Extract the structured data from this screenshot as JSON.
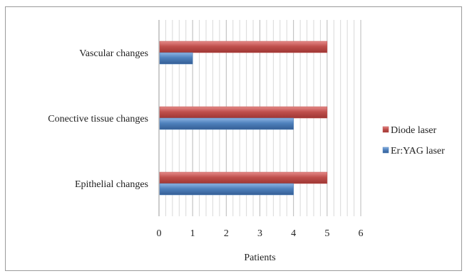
{
  "chart_data": {
    "type": "bar",
    "orientation": "horizontal",
    "categories": [
      "Vascular changes",
      "Conective tissue changes",
      "Epithelial changes"
    ],
    "series": [
      {
        "name": "Diode laser",
        "values": [
          5,
          5,
          5
        ],
        "color": "#c0504d"
      },
      {
        "name": "Er:YAG laser",
        "values": [
          1,
          4,
          4
        ],
        "color": "#4f81bd"
      }
    ],
    "xlabel": "Patients",
    "ylabel": "",
    "xlim": [
      0,
      6
    ],
    "xticks": [
      "0",
      "1",
      "2",
      "3",
      "4",
      "5",
      "6"
    ],
    "grid": "vertical",
    "legend_position": "right"
  }
}
